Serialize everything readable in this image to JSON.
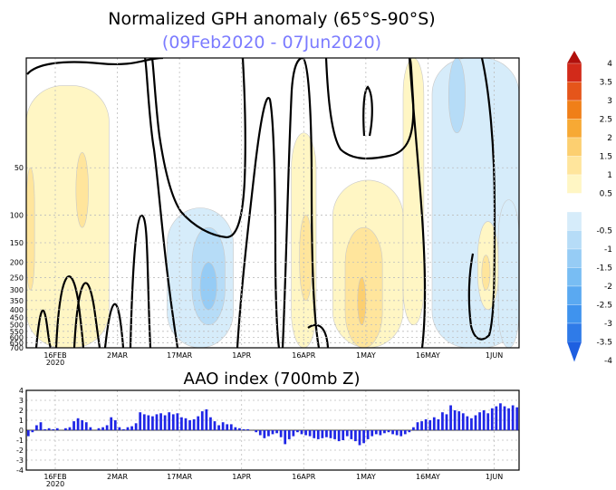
{
  "title": "Normalized GPH anomaly (65°S-90°S)",
  "subtitle": "(09Feb2020 - 07Jun2020)",
  "colors": {
    "subtitle": "#7b7bff",
    "bars": "#1f26e6",
    "scale": [
      "#1e5fe0",
      "#2f7be8",
      "#3f93ee",
      "#5aa9f1",
      "#78bdf3",
      "#96ccf5",
      "#b6dcf7",
      "#d6ecfa",
      "#ffffff",
      "#fff6c4",
      "#ffe59c",
      "#fccf70",
      "#f7a934",
      "#f07f18",
      "#e5551a",
      "#d22a1a",
      "#b1100c"
    ]
  },
  "chart_data": [
    {
      "type": "heatmap",
      "title": "Normalized GPH anomaly (65°S-90°S)",
      "subtitle": "(09Feb2020 - 07Jun2020)",
      "x_ticks": [
        {
          "label": "16FEB",
          "sublabel": "2020",
          "day": 7
        },
        {
          "label": "2MAR",
          "sublabel": "",
          "day": 22
        },
        {
          "label": "17MAR",
          "sublabel": "",
          "day": 37
        },
        {
          "label": "1APR",
          "sublabel": "",
          "day": 52
        },
        {
          "label": "16APR",
          "sublabel": "",
          "day": 67
        },
        {
          "label": "1MAY",
          "sublabel": "",
          "day": 82
        },
        {
          "label": "16MAY",
          "sublabel": "",
          "day": 97
        },
        {
          "label": "1JUN",
          "sublabel": "",
          "day": 113
        }
      ],
      "x_range_days": [
        0,
        119
      ],
      "y_axis": "pressure (mb), log scale",
      "y_range": [
        10,
        700
      ],
      "y_ticks": [
        "50",
        "100",
        "150",
        "200",
        "250",
        "300",
        "350",
        "400",
        "450",
        "500",
        "550",
        "600",
        "650",
        "700"
      ],
      "colorbar_ticks": [
        "4",
        "3.5",
        "3",
        "2.5",
        "2",
        "1.5",
        "1",
        "0.5",
        "-0.5",
        "-1",
        "-1.5",
        "-2",
        "-2.5",
        "-3",
        "-3.5",
        "-4"
      ],
      "anomaly_regions": [
        {
          "level": 0.5,
          "day_from": 0,
          "day_to": 20,
          "p_from": 15,
          "p_to": 700
        },
        {
          "level": 1.0,
          "day_from": 0,
          "day_to": 2,
          "p_from": 50,
          "p_to": 300
        },
        {
          "level": 1.0,
          "day_from": 12,
          "day_to": 15,
          "p_from": 40,
          "p_to": 120
        },
        {
          "level": -0.5,
          "day_from": 34,
          "day_to": 50,
          "p_from": 90,
          "p_to": 700
        },
        {
          "level": -1.0,
          "day_from": 40,
          "day_to": 48,
          "p_from": 120,
          "p_to": 500
        },
        {
          "level": -1.5,
          "day_from": 42,
          "day_to": 46,
          "p_from": 200,
          "p_to": 400
        },
        {
          "level": 0.5,
          "day_from": 64,
          "day_to": 70,
          "p_from": 30,
          "p_to": 700
        },
        {
          "level": 1.0,
          "day_from": 66,
          "day_to": 69,
          "p_from": 100,
          "p_to": 350
        },
        {
          "level": 0.5,
          "day_from": 74,
          "day_to": 91,
          "p_from": 60,
          "p_to": 700
        },
        {
          "level": 1.0,
          "day_from": 77,
          "day_to": 86,
          "p_from": 120,
          "p_to": 700
        },
        {
          "level": 1.5,
          "day_from": 80,
          "day_to": 82,
          "p_from": 250,
          "p_to": 500
        },
        {
          "level": 0.5,
          "day_from": 91,
          "day_to": 96,
          "p_from": 10,
          "p_to": 500
        },
        {
          "level": -0.5,
          "day_from": 98,
          "day_to": 119,
          "p_from": 10,
          "p_to": 700
        },
        {
          "level": -1.0,
          "day_from": 102,
          "day_to": 106,
          "p_from": 10,
          "p_to": 30
        },
        {
          "level": 0.5,
          "day_from": 109,
          "day_to": 114,
          "p_from": 110,
          "p_to": 400
        },
        {
          "level": 1.0,
          "day_from": 110,
          "day_to": 112,
          "p_from": 180,
          "p_to": 300
        },
        {
          "level": -0.5,
          "day_from": 114,
          "day_to": 119,
          "p_from": 80,
          "p_to": 700
        }
      ]
    },
    {
      "type": "bar",
      "title": "AAO index (700mb Z)",
      "x_ticks": [
        "16FEB",
        "2MAR",
        "17MAR",
        "1APR",
        "16APR",
        "1MAY",
        "16MAY",
        "1JUN"
      ],
      "x_tick_sublabel": "2020",
      "y_ticks": [
        "4",
        "3",
        "2",
        "1",
        "0",
        "-1",
        "-2",
        "-3",
        "-4"
      ],
      "ylim": [
        -4,
        4
      ],
      "values": [
        -0.6,
        -0.2,
        0.5,
        0.8,
        0.1,
        0.2,
        0.1,
        0.2,
        0.0,
        0.2,
        0.3,
        0.9,
        1.2,
        1.0,
        0.8,
        0.3,
        0.0,
        0.2,
        0.3,
        0.5,
        1.3,
        1.0,
        0.3,
        0.1,
        0.3,
        0.4,
        0.7,
        1.8,
        1.6,
        1.5,
        1.4,
        1.6,
        1.7,
        1.5,
        1.8,
        1.6,
        1.7,
        1.3,
        1.2,
        1.0,
        1.1,
        1.4,
        1.9,
        2.1,
        1.3,
        0.9,
        0.5,
        0.8,
        0.6,
        0.6,
        0.3,
        0.2,
        0.1,
        0.1,
        0.0,
        -0.2,
        -0.5,
        -0.8,
        -0.6,
        -0.4,
        -0.3,
        -0.7,
        -1.4,
        -0.9,
        -0.6,
        -0.2,
        -0.4,
        -0.5,
        -0.6,
        -0.8,
        -0.9,
        -0.8,
        -0.7,
        -0.8,
        -0.9,
        -1.1,
        -1.0,
        -0.6,
        -0.9,
        -1.1,
        -1.5,
        -1.3,
        -0.9,
        -0.6,
        -0.4,
        -0.5,
        -0.3,
        -0.2,
        -0.4,
        -0.5,
        -0.6,
        -0.4,
        -0.2,
        0.3,
        0.8,
        0.9,
        1.1,
        1.0,
        1.3,
        1.1,
        1.8,
        1.6,
        2.5,
        2.0,
        1.9,
        1.7,
        1.4,
        1.2,
        1.5,
        1.8,
        2.0,
        1.7,
        2.2,
        2.4,
        2.7,
        2.4,
        2.2,
        2.5,
        2.3
      ]
    }
  ]
}
